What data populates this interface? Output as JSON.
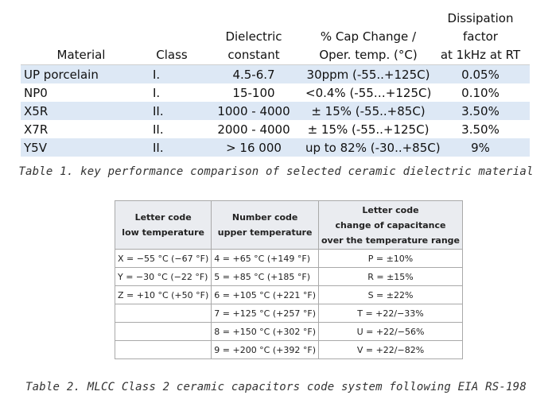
{
  "table1": {
    "headers": [
      {
        "line1": "",
        "line2": "Material"
      },
      {
        "line1": "",
        "line2": "Class"
      },
      {
        "line1": "Dielectric",
        "line2": "constant"
      },
      {
        "line1": "% Cap Change /",
        "line2": "Oper. temp. (°C)"
      },
      {
        "line1": "Dissipation factor",
        "line2": "at 1kHz at RT"
      }
    ],
    "rows": [
      {
        "material": "UP porcelain",
        "class": "I.",
        "dielectric": "4.5-6.7",
        "cap_change": "30ppm (-55..+125C)",
        "dissipation": "0.05%"
      },
      {
        "material": "NP0",
        "class": "I.",
        "dielectric": "15-100",
        "cap_change": "<0.4% (-55…+125C)",
        "dissipation": "0.10%"
      },
      {
        "material": "X5R",
        "class": "II.",
        "dielectric": "1000 - 4000",
        "cap_change": "± 15% (-55..+85C)",
        "dissipation": "3.50%"
      },
      {
        "material": "X7R",
        "class": "II.",
        "dielectric": "2000 - 4000",
        "cap_change": "± 15% (-55..+125C)",
        "dissipation": "3.50%"
      },
      {
        "material": "Y5V",
        "class": "II.",
        "dielectric": "> 16 000",
        "cap_change": "up to 82% (-30..+85C)",
        "dissipation": "9%"
      }
    ],
    "caption": "Table 1. key performance comparison of selected ceramic dielectric material"
  },
  "table2": {
    "headers": [
      {
        "line1": "Letter code",
        "line2": "low temperature",
        "line3": ""
      },
      {
        "line1": "Number code",
        "line2": "upper temperature",
        "line3": ""
      },
      {
        "line1": "Letter code",
        "line2": "change of capacitance",
        "line3": "over the temperature range"
      }
    ],
    "rows": [
      {
        "low": "X = −55 °C (−67 °F)",
        "upper": "4 = +65 °C (+149 °F)",
        "change": "P = ±10%"
      },
      {
        "low": "Y = −30 °C (−22 °F)",
        "upper": "5 = +85 °C (+185 °F)",
        "change": "R = ±15%"
      },
      {
        "low": "Z = +10 °C (+50 °F)",
        "upper": "6 = +105 °C (+221 °F)",
        "change": "S = ±22%"
      },
      {
        "low": "",
        "upper": "7 = +125 °C (+257 °F)",
        "change": "T = +22/−33%"
      },
      {
        "low": "",
        "upper": "8 = +150 °C (+302 °F)",
        "change": "U = +22/−56%"
      },
      {
        "low": "",
        "upper": "9 = +200 °C (+392 °F)",
        "change": "V = +22/−82%"
      }
    ],
    "caption": "Table 2. MLCC Class 2 ceramic capacitors code system following EIA RS-198"
  }
}
